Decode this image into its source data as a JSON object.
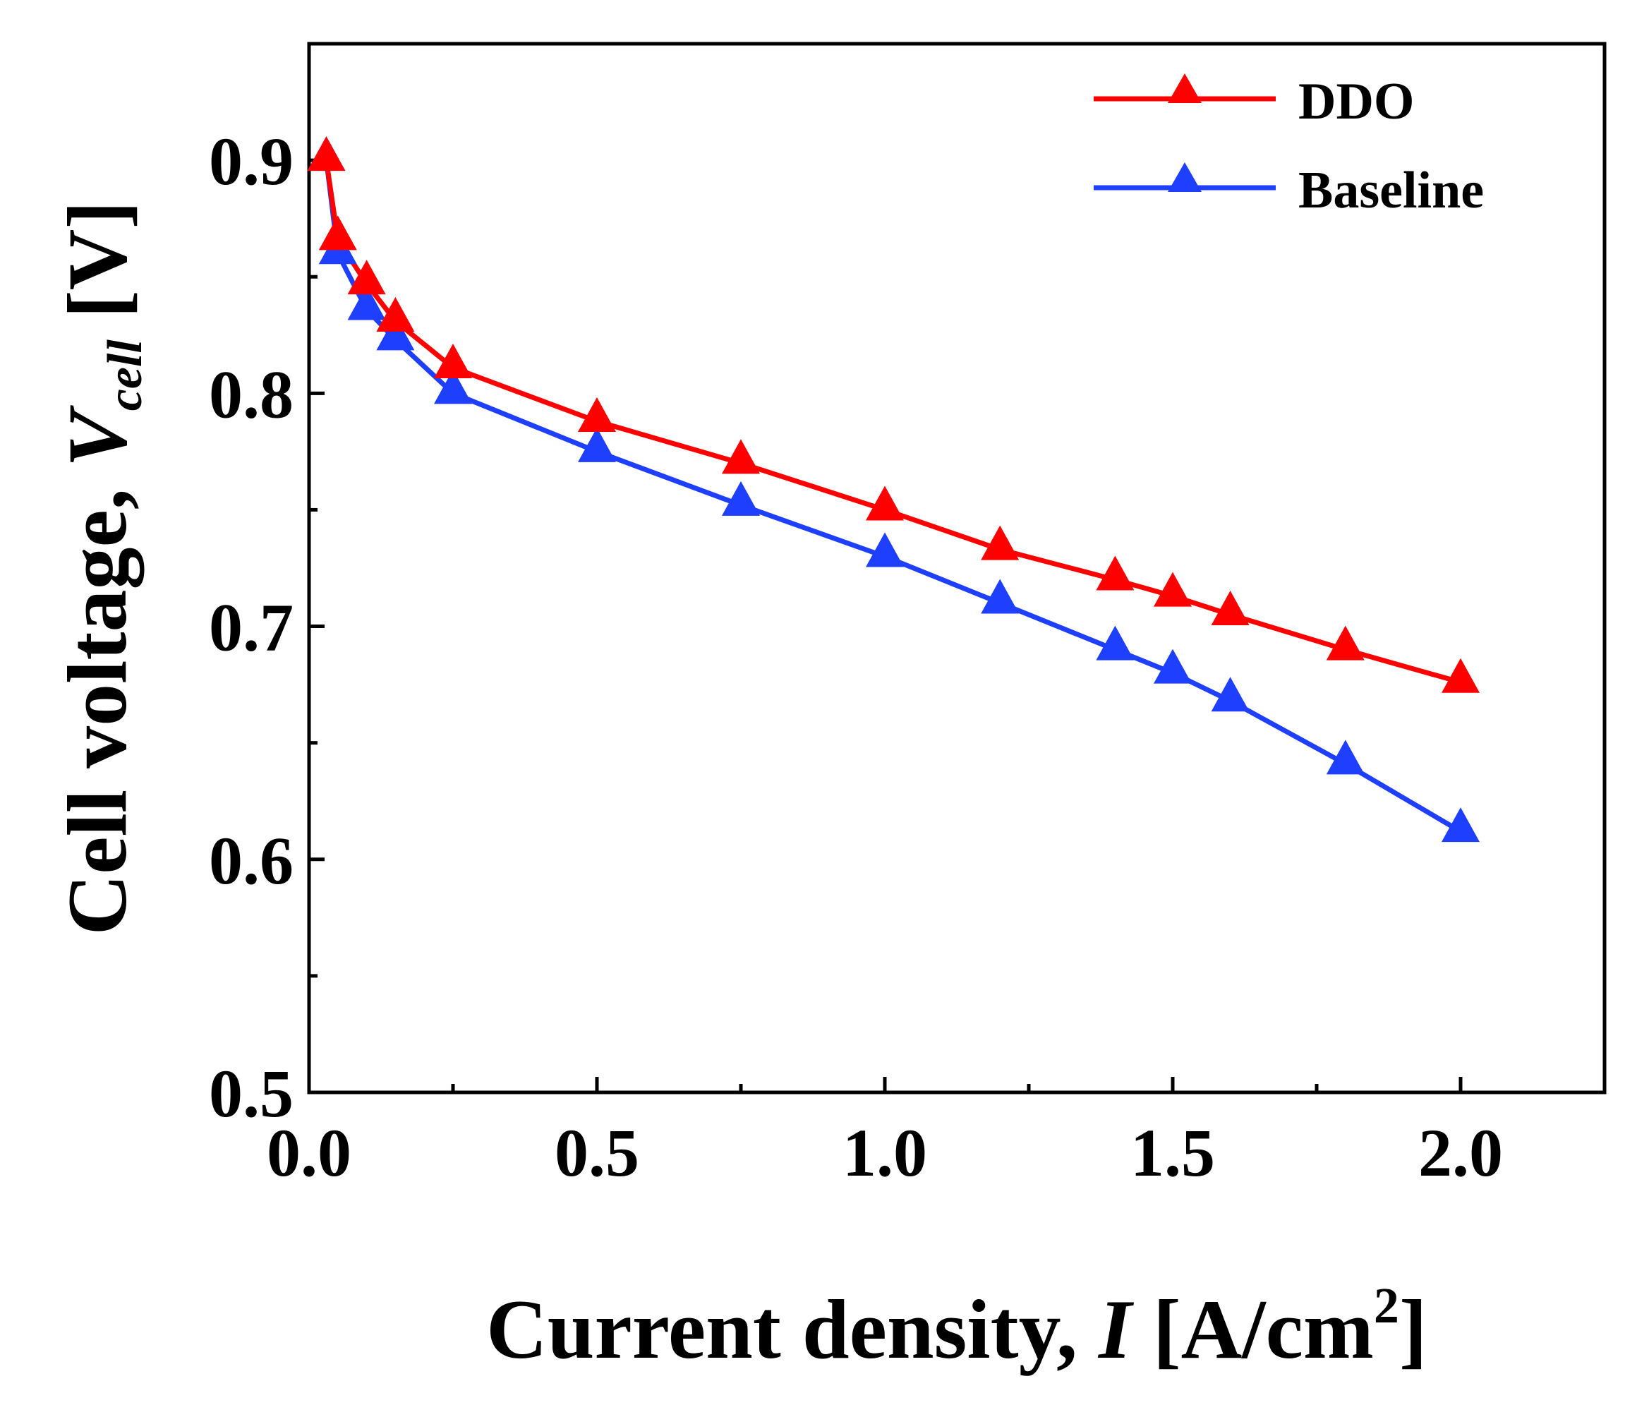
{
  "chart_data": {
    "type": "line",
    "title": "",
    "xlabel": {
      "prefix": "Current density, ",
      "var": "I",
      "unit_open": " [A/cm",
      "unit_sup": "2",
      "unit_close": "]"
    },
    "ylabel": {
      "prefix": "Cell voltage, ",
      "var": "V",
      "sub": "cell",
      "unit": " [V]"
    },
    "xlim": [
      0.0,
      2.25
    ],
    "ylim": [
      0.5,
      0.95
    ],
    "x_ticks": [
      0.0,
      0.5,
      1.0,
      1.5,
      2.0
    ],
    "x_tick_labels": [
      "0.0",
      "0.5",
      "1.0",
      "1.5",
      "2.0"
    ],
    "x_minor_ticks": [
      0.25,
      0.75,
      1.25,
      1.75
    ],
    "y_ticks": [
      0.5,
      0.6,
      0.7,
      0.8,
      0.9
    ],
    "y_tick_labels": [
      "0.5",
      "0.6",
      "0.7",
      "0.8",
      "0.9"
    ],
    "y_minor_ticks": [
      0.55,
      0.65,
      0.75,
      0.85
    ],
    "grid": false,
    "legend_position": "top-right",
    "series": [
      {
        "name": "DDO",
        "color": "#ff0000",
        "marker": "triangle",
        "x": [
          0.03,
          0.05,
          0.1,
          0.15,
          0.25,
          0.5,
          0.75,
          1.0,
          1.2,
          1.4,
          1.5,
          1.6,
          1.8,
          2.0
        ],
        "y": [
          0.9,
          0.866,
          0.847,
          0.831,
          0.811,
          0.788,
          0.77,
          0.75,
          0.733,
          0.72,
          0.713,
          0.705,
          0.69,
          0.676
        ]
      },
      {
        "name": "Baseline",
        "color": "#1f3fff",
        "marker": "triangle",
        "x": [
          0.03,
          0.05,
          0.1,
          0.15,
          0.25,
          0.5,
          0.75,
          1.0,
          1.2,
          1.4,
          1.5,
          1.6,
          1.8,
          2.0
        ],
        "y": [
          0.9,
          0.86,
          0.836,
          0.823,
          0.8,
          0.775,
          0.752,
          0.73,
          0.71,
          0.69,
          0.68,
          0.668,
          0.641,
          0.612
        ]
      }
    ]
  }
}
